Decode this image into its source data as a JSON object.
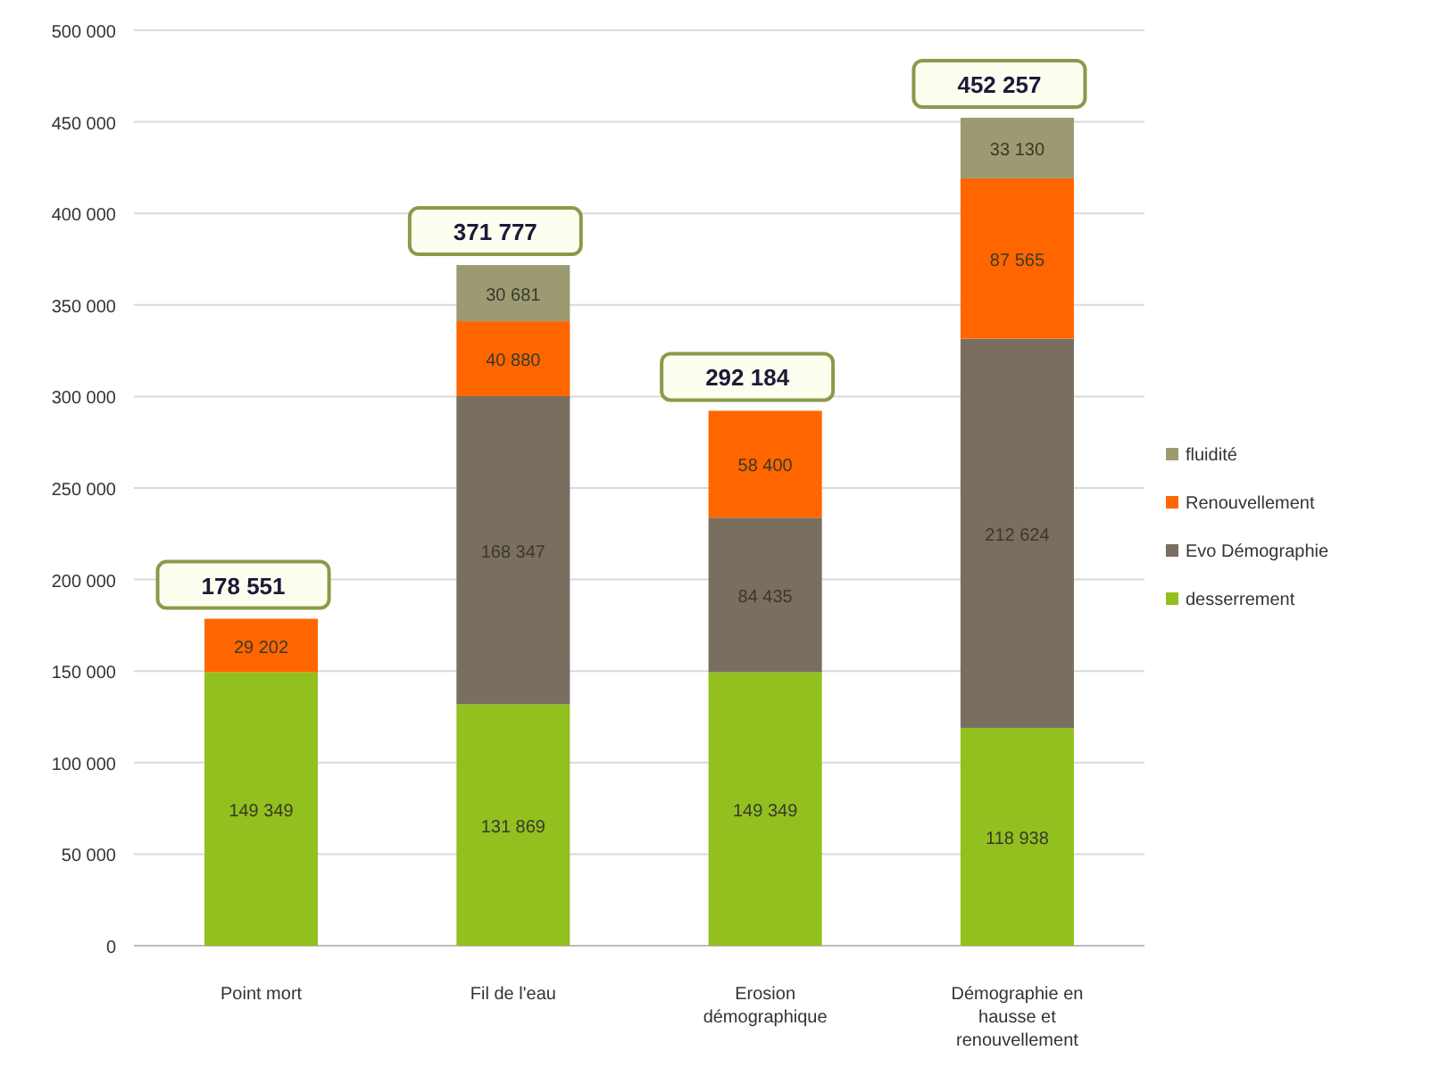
{
  "chart_data": {
    "type": "bar",
    "stacked": true,
    "categories": [
      "Point mort",
      "Fil de l'eau",
      "Erosion démographique",
      "Démographie en hausse et renouvellement"
    ],
    "series": [
      {
        "name": "desserrement",
        "color": "#92c01f",
        "values": [
          149349,
          131869,
          149349,
          118938
        ]
      },
      {
        "name": "Evo Démographie",
        "color": "#7a6e60",
        "values": [
          null,
          168347,
          84435,
          212624
        ]
      },
      {
        "name": "Renouvellement",
        "color": "#ff6600",
        "values": [
          29202,
          40880,
          58400,
          87565
        ]
      },
      {
        "name": "fluidité",
        "color": "#9c9a72",
        "values": [
          null,
          30681,
          null,
          33130
        ]
      }
    ],
    "ylim": [
      0,
      500000
    ],
    "yticks": [
      {
        "value": 0,
        "label": "0"
      },
      {
        "value": 50000,
        "label": "50 000"
      },
      {
        "value": 100000,
        "label": "100 000"
      },
      {
        "value": 150000,
        "label": "150 000"
      },
      {
        "value": 200000,
        "label": "200 000"
      },
      {
        "value": 250000,
        "label": "250 000"
      },
      {
        "value": 300000,
        "label": "300 000"
      },
      {
        "value": 350000,
        "label": "350 000"
      },
      {
        "value": 400000,
        "label": "400 000"
      },
      {
        "value": 450000,
        "label": "450 000"
      },
      {
        "value": 500000,
        "label": "500 000"
      }
    ],
    "grid": "y",
    "legend": "right",
    "data_labels": true,
    "totals": [
      "178 551",
      "371 777",
      "292 184",
      "452 257"
    ]
  }
}
